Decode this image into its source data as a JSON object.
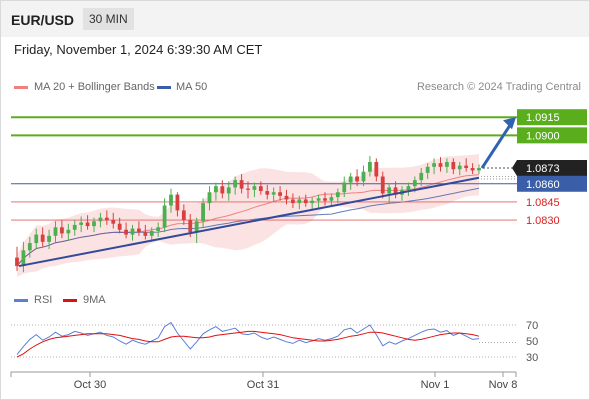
{
  "header": {
    "pair": "EUR/USD",
    "interval": "30 MIN"
  },
  "datetime": "Friday, November 1, 2024 6:39:30 AM CET",
  "legend": {
    "ma20": "MA 20 + Bollinger Bands",
    "ma50": "MA 50",
    "rsi": "RSI",
    "ma9": "9MA"
  },
  "credit": "Research © 2024 Trading Central",
  "colors": {
    "candle_up": "#4caf50",
    "candle_down": "#d84040",
    "bollinger_band": "#fbdada",
    "ma20": "#f08080",
    "ma50": "#3a5fa8",
    "trendline": "#33499a",
    "target_line": "#5aae1e",
    "current_price_box": "#222222",
    "support_line_blue": "#3a5fa8",
    "support_line_red": "#e06060",
    "rsi": "#5b7fd6",
    "rsi_ma9": "#e01010",
    "forecast_arrow": "#2f63b0"
  },
  "chart_data": [
    {
      "type": "candlestick",
      "title": "",
      "instrument": "EUR/USD",
      "timeframe": "30 MIN",
      "x_tick_labels": [
        "Oct 30",
        "Oct 31",
        "Nov 1",
        "Nov 8"
      ],
      "ylim": [
        1.0778,
        1.0935
      ],
      "grid": false,
      "legend_position": "top-left",
      "price_levels": [
        {
          "label": "1.0915",
          "value": 1.0915,
          "kind": "target"
        },
        {
          "label": "1.0900",
          "value": 1.09,
          "kind": "target"
        },
        {
          "label": "1.0873",
          "value": 1.0873,
          "kind": "current"
        },
        {
          "label": "1.0860",
          "value": 1.086,
          "kind": "pivot"
        },
        {
          "label": "1.0845",
          "value": 1.0845,
          "kind": "support"
        },
        {
          "label": "1.0830",
          "value": 1.083,
          "kind": "support"
        }
      ],
      "forecast_arrow": {
        "from": 1.0873,
        "to": 1.0915
      },
      "trendline": {
        "from": 1.0792,
        "to": 1.0865
      },
      "candles": [
        [
          1.0799,
          1.0808,
          1.0788,
          1.0792
        ],
        [
          1.0792,
          1.0812,
          1.0787,
          1.0805
        ],
        [
          1.0805,
          1.0816,
          1.0799,
          1.0811
        ],
        [
          1.0811,
          1.0823,
          1.0806,
          1.0818
        ],
        [
          1.0818,
          1.0824,
          1.0808,
          1.0812
        ],
        [
          1.0812,
          1.0822,
          1.0806,
          1.0817
        ],
        [
          1.0817,
          1.0829,
          1.0812,
          1.0824
        ],
        [
          1.0824,
          1.083,
          1.0815,
          1.0819
        ],
        [
          1.0819,
          1.0827,
          1.0813,
          1.0822
        ],
        [
          1.0822,
          1.083,
          1.0817,
          1.0826
        ],
        [
          1.0826,
          1.0833,
          1.082,
          1.0828
        ],
        [
          1.0828,
          1.0834,
          1.0822,
          1.0825
        ],
        [
          1.0825,
          1.0832,
          1.082,
          1.0829
        ],
        [
          1.0829,
          1.0836,
          1.0824,
          1.0832
        ],
        [
          1.0832,
          1.0838,
          1.0826,
          1.083
        ],
        [
          1.083,
          1.0836,
          1.0823,
          1.0827
        ],
        [
          1.0827,
          1.0832,
          1.0819,
          1.0822
        ],
        [
          1.0822,
          1.0828,
          1.0815,
          1.0818
        ],
        [
          1.0818,
          1.0826,
          1.0813,
          1.0823
        ],
        [
          1.0823,
          1.0829,
          1.0817,
          1.082
        ],
        [
          1.082,
          1.0826,
          1.0814,
          1.0817
        ],
        [
          1.0817,
          1.0824,
          1.0812,
          1.0821
        ],
        [
          1.0821,
          1.0828,
          1.0816,
          1.0824
        ],
        [
          1.0824,
          1.0848,
          1.082,
          1.0842
        ],
        [
          1.0842,
          1.0856,
          1.0836,
          1.0851
        ],
        [
          1.0851,
          1.0853,
          1.0833,
          1.0838
        ],
        [
          1.0838,
          1.0843,
          1.0826,
          1.083
        ],
        [
          1.083,
          1.0835,
          1.0816,
          1.082
        ],
        [
          1.082,
          1.0832,
          1.0811,
          1.0829
        ],
        [
          1.0829,
          1.0848,
          1.0824,
          1.0844
        ],
        [
          1.0844,
          1.0858,
          1.0838,
          1.0853
        ],
        [
          1.0853,
          1.0861,
          1.0846,
          1.0858
        ],
        [
          1.0858,
          1.0863,
          1.0848,
          1.0852
        ],
        [
          1.0852,
          1.0862,
          1.0846,
          1.0857
        ],
        [
          1.0857,
          1.0866,
          1.0851,
          1.0863
        ],
        [
          1.0863,
          1.0868,
          1.0852,
          1.0856
        ],
        [
          1.0856,
          1.0862,
          1.0848,
          1.0855
        ],
        [
          1.0855,
          1.0861,
          1.0849,
          1.0858
        ],
        [
          1.0858,
          1.0862,
          1.0851,
          1.0854
        ],
        [
          1.0854,
          1.0859,
          1.0847,
          1.0851
        ],
        [
          1.0851,
          1.0857,
          1.0845,
          1.0853
        ],
        [
          1.0853,
          1.0858,
          1.0846,
          1.085
        ],
        [
          1.085,
          1.0855,
          1.0843,
          1.0847
        ],
        [
          1.0847,
          1.0852,
          1.084,
          1.0844
        ],
        [
          1.0844,
          1.085,
          1.0839,
          1.0847
        ],
        [
          1.0847,
          1.0851,
          1.0841,
          1.0844
        ],
        [
          1.0844,
          1.0849,
          1.0838,
          1.0846
        ],
        [
          1.0846,
          1.0851,
          1.084,
          1.0848
        ],
        [
          1.0848,
          1.0853,
          1.0842,
          1.0846
        ],
        [
          1.0846,
          1.0852,
          1.0841,
          1.0849
        ],
        [
          1.0849,
          1.0856,
          1.0844,
          1.0853
        ],
        [
          1.0853,
          1.0866,
          1.0849,
          1.0861
        ],
        [
          1.0861,
          1.0869,
          1.0855,
          1.0866
        ],
        [
          1.0866,
          1.0872,
          1.0858,
          1.0862
        ],
        [
          1.0862,
          1.0875,
          1.0858,
          1.087
        ],
        [
          1.087,
          1.0883,
          1.0866,
          1.0878
        ],
        [
          1.0878,
          1.0881,
          1.0862,
          1.0866
        ],
        [
          1.0866,
          1.087,
          1.0848,
          1.0852
        ],
        [
          1.0852,
          1.086,
          1.0844,
          1.0857
        ],
        [
          1.0857,
          1.0862,
          1.0848,
          1.0851
        ],
        [
          1.0851,
          1.0858,
          1.0846,
          1.0855
        ],
        [
          1.0855,
          1.0861,
          1.085,
          1.0858
        ],
        [
          1.0858,
          1.0866,
          1.0853,
          1.0863
        ],
        [
          1.0863,
          1.0873,
          1.0858,
          1.0869
        ],
        [
          1.0869,
          1.0877,
          1.0864,
          1.0874
        ],
        [
          1.0874,
          1.0881,
          1.0868,
          1.0877
        ],
        [
          1.0877,
          1.0882,
          1.087,
          1.0874
        ],
        [
          1.0874,
          1.0881,
          1.0869,
          1.0878
        ],
        [
          1.0878,
          1.0881,
          1.0868,
          1.0872
        ],
        [
          1.0872,
          1.0878,
          1.0867,
          1.0875
        ],
        [
          1.0875,
          1.0881,
          1.087,
          1.0873
        ],
        [
          1.0873,
          1.0877,
          1.0868,
          1.0871
        ],
        [
          1.0871,
          1.0876,
          1.0868,
          1.0873
        ]
      ]
    },
    {
      "type": "line",
      "title": "",
      "ylim": [
        20,
        80
      ],
      "y_tick_labels": [
        "70",
        "50",
        "30"
      ],
      "x_tick_labels": [
        "Oct 30",
        "Oct 31",
        "Nov 1",
        "Nov 8"
      ],
      "legend_position": "top-left",
      "series": [
        {
          "name": "RSI",
          "values": [
            33,
            43,
            52,
            58,
            51,
            55,
            61,
            56,
            58,
            62,
            60,
            57,
            59,
            61,
            57,
            55,
            50,
            46,
            51,
            48,
            46,
            50,
            54,
            68,
            73,
            60,
            50,
            40,
            49,
            59,
            64,
            68,
            62,
            64,
            66,
            59,
            58,
            60,
            55,
            52,
            55,
            52,
            49,
            47,
            51,
            48,
            50,
            53,
            51,
            53,
            56,
            64,
            66,
            60,
            65,
            70,
            58,
            44,
            49,
            46,
            50,
            53,
            57,
            61,
            64,
            65,
            61,
            63,
            57,
            60,
            56,
            52,
            53
          ]
        },
        {
          "name": "9MA",
          "values": [
            30,
            34,
            40,
            45,
            49,
            52,
            54,
            55,
            56,
            57,
            58,
            59,
            59,
            59,
            59,
            58,
            57,
            55,
            53,
            52,
            50,
            49,
            49,
            52,
            55,
            56,
            56,
            55,
            54,
            54,
            55,
            57,
            58,
            59,
            60,
            61,
            62,
            62,
            61,
            60,
            59,
            58,
            56,
            54,
            53,
            52,
            51,
            50,
            50,
            51,
            52,
            54,
            56,
            57,
            59,
            61,
            61,
            60,
            58,
            56,
            54,
            52,
            51,
            52,
            54,
            56,
            58,
            59,
            60,
            60,
            59,
            58,
            56
          ]
        }
      ]
    }
  ]
}
